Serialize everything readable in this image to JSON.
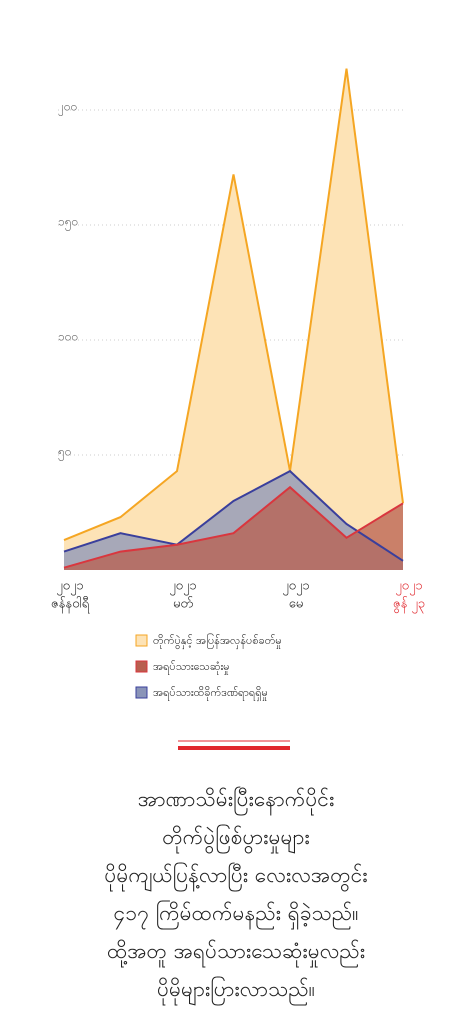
{
  "chart_data": {
    "type": "area",
    "categories": [
      [
        "၂၀၂၁",
        "ဇန်နဝါရီ"
      ],
      null,
      [
        "၂၀၂၁",
        "မတ်"
      ],
      null,
      [
        "၂၀၂၁",
        "မေ"
      ],
      null,
      [
        "၂၀၂၁",
        "ဇွန် ၂၃"
      ]
    ],
    "highlight_index": 6,
    "highlight_color": "#e0262c",
    "series": [
      {
        "name": "တိုက်ပွဲနှင့် အပြန်အလှန်ပစ်ခတ်မှု",
        "color": "#f5a623",
        "fill": "#fde3b6",
        "values": [
          13,
          23,
          43,
          172,
          43,
          218,
          29
        ]
      },
      {
        "name": "အရပ်သားသေဆုံးမှု",
        "color": "#d9363e",
        "fill": "#b85f4f",
        "values": [
          1,
          8,
          11,
          16,
          36,
          14,
          29
        ]
      },
      {
        "name": "အရပ်သားထိခိုက်ဒဏ်ရာရရှိမှု",
        "color": "#3a3f9c",
        "fill": "#8a94b8",
        "values": [
          8,
          16,
          11,
          30,
          43,
          20,
          4
        ]
      }
    ],
    "ylim": [
      0,
      230
    ],
    "yticks": [
      {
        "value": 50,
        "label": "၅၀"
      },
      {
        "value": 100,
        "label": "၁၀၀"
      },
      {
        "value": 150,
        "label": "၁၅၀"
      },
      {
        "value": 200,
        "label": "၂၀၀"
      }
    ],
    "grid": true
  },
  "caption": [
    "အာဏာသိမ်းပြီးနောက်ပိုင်း",
    "တိုက်ပွဲဖြစ်ပွားမှုများ",
    "ပိုမိုကျယ်ပြန့်လာပြီး လေးလအတွင်း",
    "၄၁၇ ကြိမ်ထက်မနည်း ရှိခဲ့သည်။",
    "ထို့အတူ အရပ်သားသေဆုံးမှုလည်း",
    "ပိုမိုများပြားလာသည်။"
  ]
}
